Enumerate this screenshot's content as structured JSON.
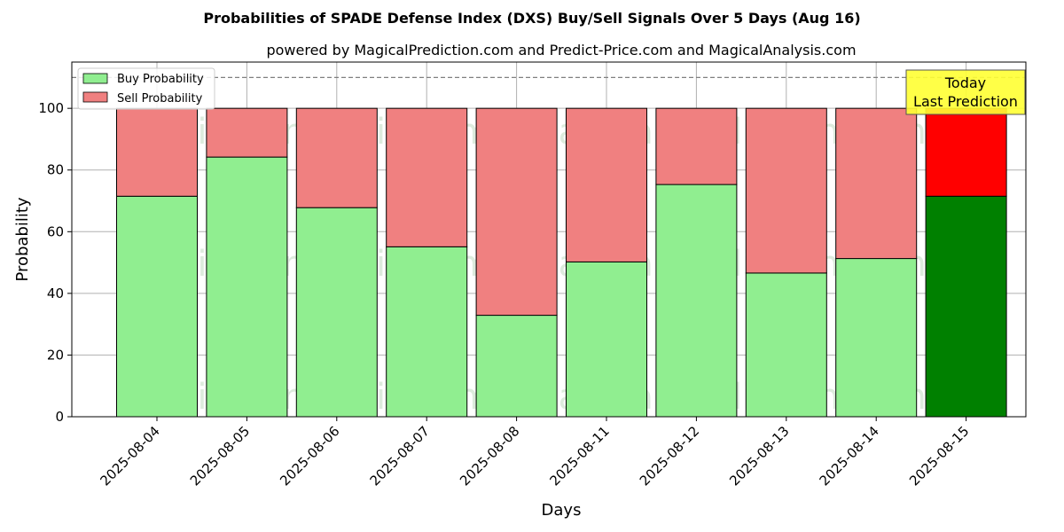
{
  "chart_data": {
    "type": "bar",
    "stacked": true,
    "title": "Probabilities of SPADE Defense Index (DXS) Buy/Sell Signals Over 5 Days (Aug 16)",
    "subtitle": "powered by MagicalPrediction.com and Predict-Price.com and MagicalAnalysis.com",
    "xlabel": "Days",
    "ylabel": "Probability",
    "ylim": [
      0,
      115
    ],
    "yticks": [
      0,
      20,
      40,
      60,
      80,
      100
    ],
    "grid": true,
    "legend_position": "top-left",
    "categories": [
      "2025-08-04",
      "2025-08-05",
      "2025-08-06",
      "2025-08-07",
      "2025-08-08",
      "2025-08-11",
      "2025-08-12",
      "2025-08-13",
      "2025-08-14",
      "2025-08-15"
    ],
    "series": [
      {
        "name": "Buy Probability",
        "color": "#90ee90",
        "highlight_color": "#008000",
        "values": [
          71.5,
          84.2,
          67.8,
          55.1,
          32.9,
          50.2,
          75.3,
          46.6,
          51.3,
          71.5
        ]
      },
      {
        "name": "Sell Probability",
        "color": "#f08080",
        "highlight_color": "#ff0000",
        "values": [
          28.5,
          15.8,
          32.2,
          44.9,
          67.1,
          49.8,
          24.7,
          53.4,
          48.7,
          28.5
        ]
      }
    ],
    "reference_line": {
      "y": 110,
      "style": "dashed"
    },
    "annotation": {
      "lines": [
        "Today",
        "Last Prediction"
      ],
      "category": "2025-08-15",
      "color": "#ffff33"
    },
    "watermarks": [
      "MagicalAnalysis.com",
      "MagicalPrediction.com"
    ]
  }
}
